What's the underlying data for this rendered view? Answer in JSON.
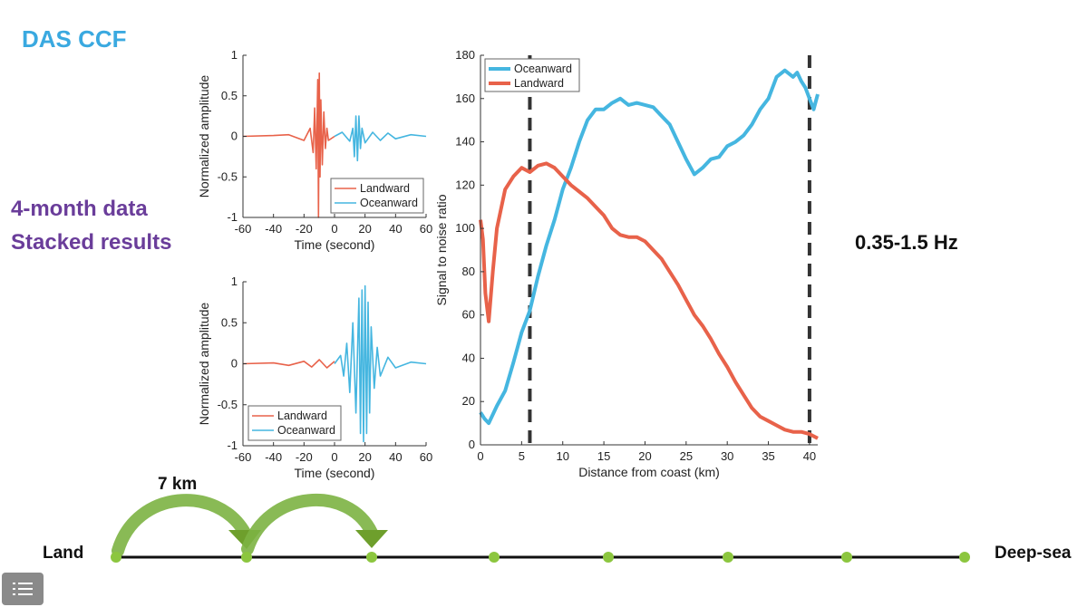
{
  "slide": {
    "title": "DAS CCF",
    "data_label_line1": "4-month data",
    "data_label_line2": "Stacked results",
    "frequency_band": "0.35-1.5 Hz",
    "spacing_label": "7 km",
    "land_label": "Land",
    "deepsea_label": "Deep-sea",
    "colors": {
      "title": "#3aa9e0",
      "labels": "#6a3d9a",
      "landward": "#e8624a",
      "oceanward": "#45b6e0",
      "timeline_node": "#8cc63f",
      "arrow": "#7cb342"
    }
  },
  "menu": {
    "icon": "list-icon"
  },
  "chart_data": [
    {
      "type": "line",
      "title": "",
      "xlabel": "Time (second)",
      "ylabel": "Normalized amplitude",
      "xlim": [
        -60,
        60
      ],
      "ylim": [
        -1,
        1
      ],
      "xticks": [
        -60,
        -40,
        -20,
        0,
        20,
        40,
        60
      ],
      "yticks": [
        -1,
        -0.5,
        0,
        0.5,
        1
      ],
      "ytick_labels": [
        "-1",
        "-0.5",
        "0",
        "0.5",
        "1"
      ],
      "grid": false,
      "legend_position": "bottom-right",
      "series": [
        {
          "name": "Landward",
          "color": "#e8624a",
          "x": [
            -60,
            -40,
            -30,
            -20,
            -16,
            -14,
            -13,
            -12,
            -11,
            -10.5,
            -10,
            -9.5,
            -9,
            -8,
            -7,
            -6,
            -5,
            -4,
            0
          ],
          "y": [
            0,
            0.01,
            0.02,
            -0.05,
            0.1,
            -0.2,
            0.35,
            -0.4,
            0.7,
            -1.0,
            0.78,
            -0.5,
            0.45,
            -0.35,
            0.3,
            -0.15,
            0.1,
            -0.05,
            0
          ]
        },
        {
          "name": "Oceanward",
          "color": "#45b6e0",
          "x": [
            0,
            5,
            10,
            12,
            13,
            14,
            15,
            16,
            17,
            18,
            20,
            25,
            30,
            35,
            40,
            50,
            60
          ],
          "y": [
            0,
            0.05,
            -0.06,
            0.1,
            -0.25,
            0.25,
            -0.3,
            0.25,
            -0.15,
            0.1,
            -0.08,
            0.05,
            -0.05,
            0.04,
            -0.03,
            0.02,
            0
          ]
        }
      ]
    },
    {
      "type": "line",
      "title": "",
      "xlabel": "Time (second)",
      "ylabel": "Normalized amplitude",
      "xlim": [
        -60,
        60
      ],
      "ylim": [
        -1,
        1
      ],
      "xticks": [
        -60,
        -40,
        -20,
        0,
        20,
        40,
        60
      ],
      "yticks": [
        -1,
        -0.5,
        0,
        0.5,
        1
      ],
      "ytick_labels": [
        "-1",
        "-0.5",
        "0",
        "0.5",
        "1"
      ],
      "grid": false,
      "legend_position": "bottom-left",
      "series": [
        {
          "name": "Landward",
          "color": "#e8624a",
          "x": [
            -60,
            -40,
            -30,
            -20,
            -15,
            -10,
            -5,
            0
          ],
          "y": [
            0,
            0.01,
            -0.02,
            0.03,
            -0.04,
            0.05,
            -0.05,
            0.03
          ]
        },
        {
          "name": "Oceanward",
          "color": "#45b6e0",
          "x": [
            0,
            4,
            6,
            8,
            10,
            12,
            14,
            16,
            17,
            18,
            19,
            20,
            21,
            22,
            23,
            24,
            26,
            28,
            30,
            35,
            40,
            50,
            60
          ],
          "y": [
            0,
            0.1,
            -0.15,
            0.25,
            -0.35,
            0.5,
            -0.6,
            0.8,
            -0.85,
            0.9,
            -0.95,
            0.95,
            -0.85,
            0.75,
            -0.6,
            0.45,
            -0.3,
            0.2,
            -0.15,
            0.08,
            -0.05,
            0.02,
            0
          ]
        }
      ]
    },
    {
      "type": "line",
      "title": "",
      "xlabel": "Distance from coast (km)",
      "ylabel": "Signal to noise ratio",
      "xlim": [
        0,
        41
      ],
      "ylim": [
        0,
        180
      ],
      "xticks": [
        0,
        5,
        10,
        15,
        20,
        25,
        30,
        35,
        40
      ],
      "yticks": [
        0,
        20,
        40,
        60,
        80,
        100,
        120,
        140,
        160,
        180
      ],
      "grid": false,
      "legend_position": "top-left",
      "vertical_lines": [
        6,
        40
      ],
      "series": [
        {
          "name": "Oceanward",
          "color": "#45b6e0",
          "x": [
            0,
            0.5,
            1,
            2,
            3,
            4,
            5,
            6,
            7,
            8,
            9,
            10,
            11,
            12,
            13,
            14,
            15,
            16,
            17,
            18,
            19,
            20,
            21,
            22,
            23,
            24,
            25,
            26,
            27,
            28,
            29,
            30,
            31,
            32,
            33,
            34,
            35,
            36,
            37,
            38,
            38.5,
            39,
            39.5,
            40,
            40.5,
            41
          ],
          "y": [
            15,
            12,
            10,
            18,
            25,
            38,
            52,
            62,
            78,
            92,
            104,
            118,
            128,
            140,
            150,
            155,
            155,
            158,
            160,
            157,
            158,
            157,
            156,
            152,
            148,
            140,
            132,
            125,
            128,
            132,
            133,
            138,
            140,
            143,
            148,
            155,
            160,
            170,
            173,
            170,
            172,
            168,
            165,
            160,
            155,
            162
          ]
        },
        {
          "name": "Landward",
          "color": "#e8624a",
          "x": [
            0,
            0.3,
            0.6,
            1,
            1.5,
            2,
            3,
            4,
            5,
            6,
            7,
            8,
            9,
            10,
            11,
            12,
            13,
            14,
            15,
            16,
            17,
            18,
            19,
            20,
            21,
            22,
            23,
            24,
            25,
            26,
            27,
            28,
            29,
            30,
            31,
            32,
            33,
            34,
            35,
            36,
            37,
            38,
            39,
            40,
            41
          ],
          "y": [
            104,
            95,
            70,
            57,
            80,
            100,
            118,
            124,
            128,
            126,
            129,
            130,
            128,
            124,
            120,
            117,
            114,
            110,
            106,
            100,
            97,
            96,
            96,
            94,
            90,
            86,
            80,
            74,
            67,
            60,
            55,
            49,
            42,
            36,
            29,
            23,
            17,
            13,
            11,
            9,
            7,
            6,
            6,
            5,
            3
          ]
        }
      ]
    }
  ]
}
